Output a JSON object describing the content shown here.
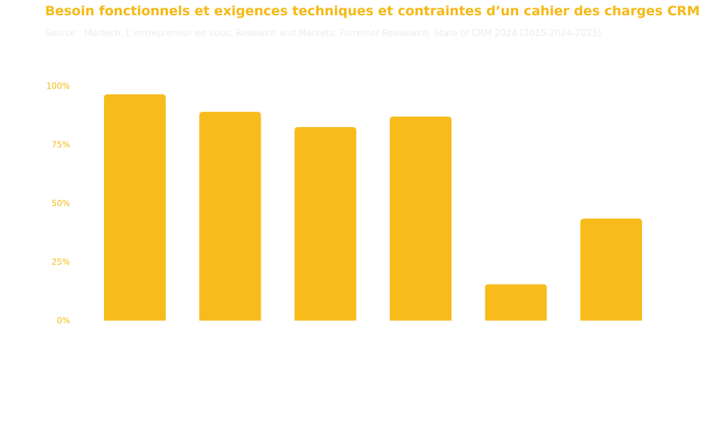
{
  "chart_data": {
    "type": "bar",
    "title": "Besoin fonctionnels et exigences techniques et contraintes d’un cahier des charges CRM",
    "subtitle": "Source : Martech, L’entrepreneur en vous, Research and Markets, Forrester Reasearch, State of CRM 2024 (2015-2024-2025)",
    "categories": [
      "",
      "",
      "",
      "",
      "",
      ""
    ],
    "values": [
      96.5,
      89,
      82.5,
      87,
      15.5,
      43.5
    ],
    "ylim": [
      0,
      100
    ],
    "yticks": [
      {
        "value": 100,
        "label": "100%"
      },
      {
        "value": 75,
        "label": "75%"
      },
      {
        "value": 50,
        "label": "50%"
      },
      {
        "value": 25,
        "label": "25%"
      },
      {
        "value": 0,
        "label": "0%"
      }
    ],
    "xlabel": "",
    "ylabel": "",
    "grid": false,
    "colors": {
      "bar": "#f7bb1c",
      "text": "#f5b917",
      "subtitle": "#ececec"
    }
  }
}
